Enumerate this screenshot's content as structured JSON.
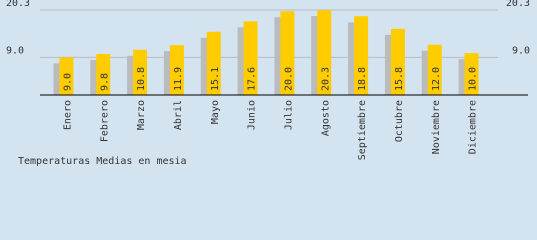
{
  "chart_data": {
    "type": "bar",
    "title": "Temperaturas Medias en mesia",
    "categories": [
      "Enero",
      "Febrero",
      "Marzo",
      "Abril",
      "Mayo",
      "Junio",
      "Julio",
      "Agosto",
      "Septiembre",
      "Octubre",
      "Noviembre",
      "Diciembre"
    ],
    "values": [
      9.0,
      9.8,
      10.8,
      11.9,
      15.1,
      17.6,
      20.0,
      20.3,
      18.8,
      15.8,
      12.0,
      10.0
    ],
    "value_labels": [
      "9.0",
      "9.8",
      "10.8",
      "11.9",
      "15.1",
      "17.6",
      "20.0",
      "20.3",
      "18.8",
      "15.8",
      "12.0",
      "10.0"
    ],
    "color": "#ffcc00",
    "shadow_color": "#bbbbbb",
    "ylim": [
      0,
      20.3
    ],
    "yticks": [
      {
        "value": 9,
        "label": "9.0"
      },
      20.3
    ],
    "grid": true
  }
}
